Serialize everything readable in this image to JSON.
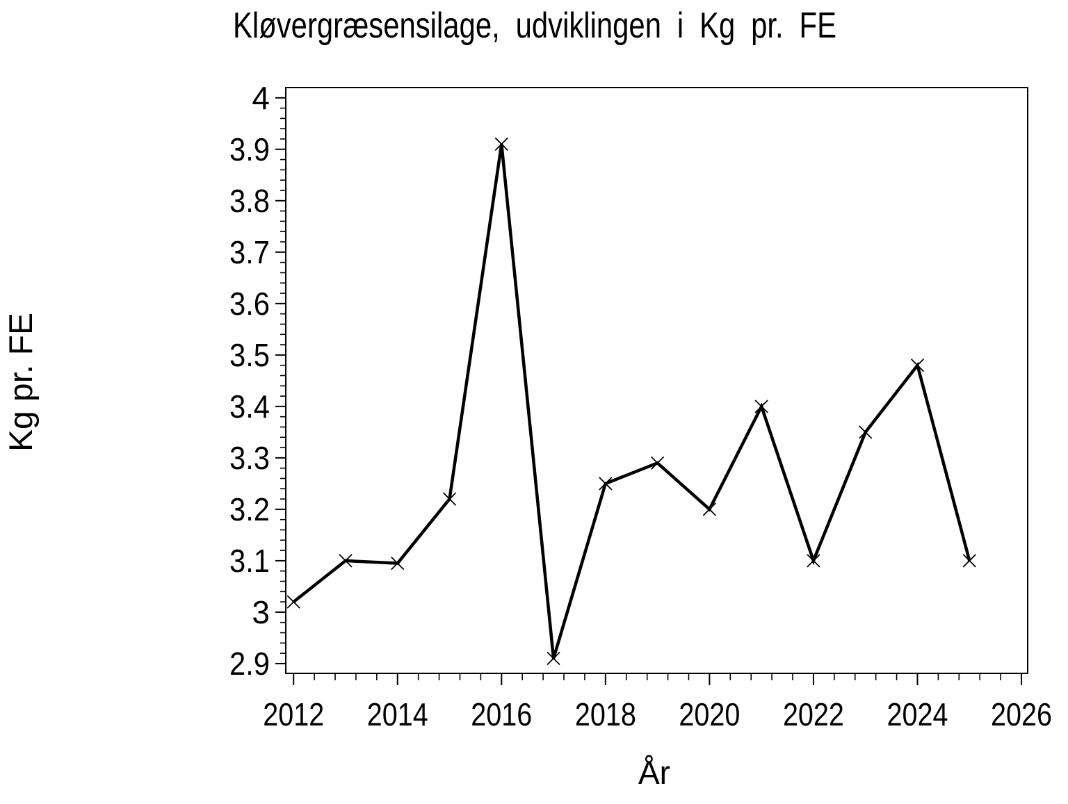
{
  "page": {
    "background_color": "#ffffff",
    "foreground_color": "#000000"
  },
  "chart_data": {
    "type": "line",
    "title": "Kløvergræsensilage, udviklingen i Kg pr. FE",
    "xlabel": "År",
    "ylabel": "Kg pr. FE",
    "series": [
      {
        "name": "Kg pr. FE",
        "x": [
          2012,
          2013,
          2014,
          2015,
          2016,
          2017,
          2018,
          2019,
          2020,
          2021,
          2022,
          2023,
          2024,
          2025
        ],
        "y": [
          3.02,
          3.1,
          3.095,
          3.22,
          3.91,
          2.91,
          3.25,
          3.29,
          3.2,
          3.4,
          3.1,
          3.35,
          3.48,
          3.1
        ]
      }
    ],
    "marker": "x",
    "line_color": "#000000",
    "marker_color": "#000000",
    "grid": false,
    "legend": false,
    "frame": true,
    "xlim": [
      2011.85,
      2026.12
    ],
    "ylim": [
      2.881,
      4.02
    ],
    "x_major_ticks": [
      2012,
      2014,
      2016,
      2018,
      2020,
      2022,
      2024,
      2026
    ],
    "x_tick_labels": [
      "2012",
      "2014",
      "2016",
      "2018",
      "2020",
      "2022",
      "2024",
      "2026"
    ],
    "x_minor_step": 0.4,
    "y_major_ticks": [
      2.9,
      3.0,
      3.1,
      3.2,
      3.3,
      3.4,
      3.5,
      3.6,
      3.7,
      3.8,
      3.9,
      4.0
    ],
    "y_tick_labels": [
      "2.9",
      "3",
      "3.1",
      "3.2",
      "3.3",
      "3.4",
      "3.5",
      "3.6",
      "3.7",
      "3.8",
      "3.9",
      "4"
    ],
    "y_minor_step": 0.02
  }
}
